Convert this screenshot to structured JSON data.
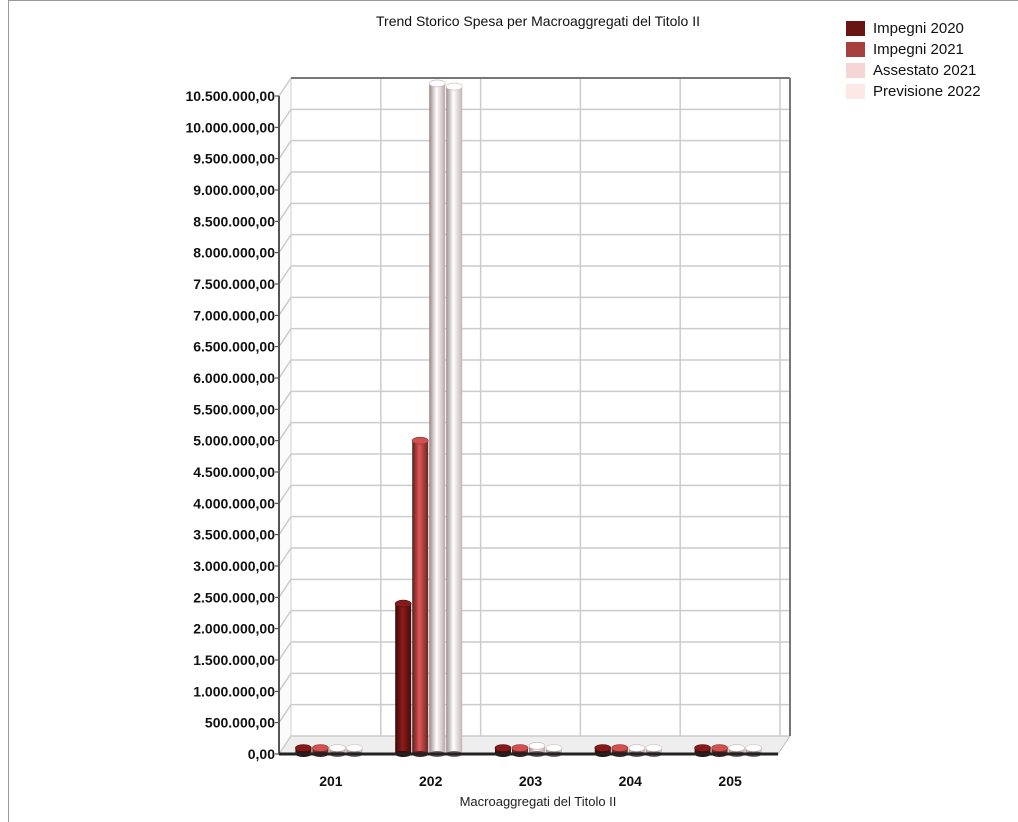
{
  "chart_data": {
    "type": "bar",
    "title": "Trend Storico Spesa per Macroaggregati del Titolo II",
    "xlabel": "Macroaggregati del Titolo II",
    "ylabel": "",
    "categories": [
      "201",
      "202",
      "203",
      "204",
      "205"
    ],
    "series": [
      {
        "name": "Impegni 2020",
        "color": "#6b1414",
        "values": [
          10000,
          2400000,
          60000,
          10000,
          10000
        ]
      },
      {
        "name": "Impegni 2021",
        "color": "#a8403e",
        "values": [
          10000,
          5000000,
          80000,
          10000,
          10000
        ]
      },
      {
        "name": "Assestato 2021",
        "color": "#f6d5d5",
        "values": [
          10000,
          10700000,
          130000,
          10000,
          15000
        ]
      },
      {
        "name": "Previsione 2022",
        "color": "#fde8e8",
        "values": [
          10000,
          10650000,
          90000,
          10000,
          20000
        ]
      }
    ],
    "ylim": [
      0,
      10500000
    ],
    "yticks": [
      "0,00",
      "500.000,00",
      "1.000.000,00",
      "1.500.000,00",
      "2.000.000,00",
      "2.500.000,00",
      "3.000.000,00",
      "3.500.000,00",
      "4.000.000,00",
      "4.500.000,00",
      "5.000.000,00",
      "5.500.000,00",
      "6.000.000,00",
      "6.500.000,00",
      "7.000.000,00",
      "7.500.000,00",
      "8.000.000,00",
      "8.500.000,00",
      "9.000.000,00",
      "9.500.000,00",
      "10.000.000,00",
      "10.500.000,00"
    ],
    "grid": true,
    "legend_position": "top-right"
  }
}
